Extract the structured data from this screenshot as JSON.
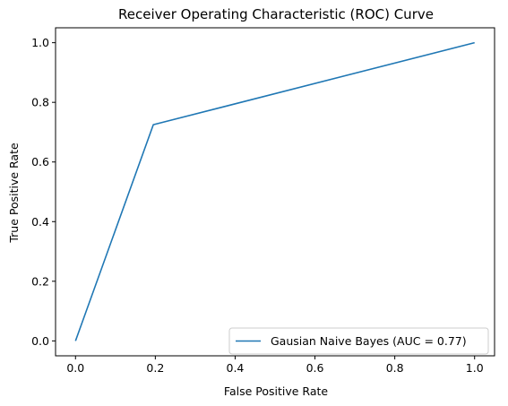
{
  "chart_data": {
    "type": "line",
    "title": "Receiver Operating Characteristic (ROC) Curve",
    "xlabel": "False Positive Rate",
    "ylabel": "True Positive Rate",
    "xlim": [
      -0.05,
      1.05
    ],
    "ylim": [
      -0.05,
      1.05
    ],
    "xticks": [
      0.0,
      0.2,
      0.4,
      0.6,
      0.8,
      1.0
    ],
    "yticks": [
      0.0,
      0.2,
      0.4,
      0.6,
      0.8,
      1.0
    ],
    "xtick_labels": [
      "0.0",
      "0.2",
      "0.4",
      "0.6",
      "0.8",
      "1.0"
    ],
    "ytick_labels": [
      "0.0",
      "0.2",
      "0.4",
      "0.6",
      "0.8",
      "1.0"
    ],
    "grid": false,
    "legend_position": "lower-right",
    "series": [
      {
        "name": "Gausian Naive Bayes (AUC = 0.77)",
        "color": "#1f77b4",
        "x": [
          0.0,
          0.195,
          1.0
        ],
        "y": [
          0.0,
          0.725,
          1.0
        ]
      }
    ]
  }
}
